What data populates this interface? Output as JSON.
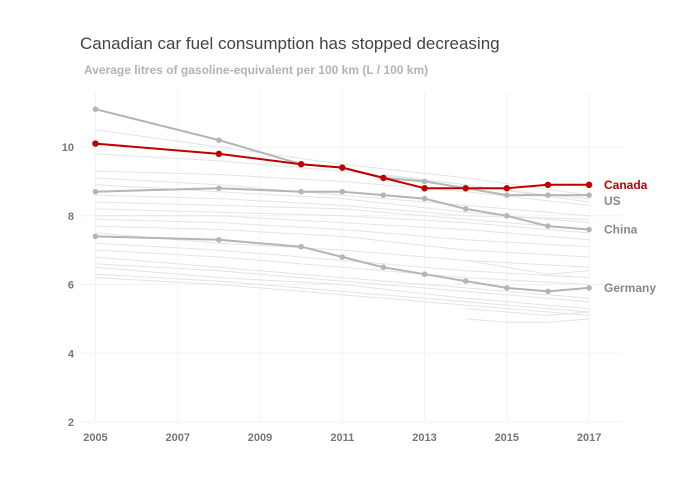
{
  "chart_data": {
    "type": "line",
    "title": "Canadian car fuel consumption has stopped decreasing",
    "subtitle": "Average litres of gasoline-equivalent per 100 km (L / 100 km)",
    "xlabel": "",
    "ylabel": "",
    "xlim": [
      2004.6,
      2017.8
    ],
    "ylim": [
      2,
      11.6
    ],
    "x_ticks": [
      2005,
      2007,
      2009,
      2011,
      2013,
      2015,
      2017
    ],
    "y_ticks": [
      2,
      4,
      6,
      8,
      10
    ],
    "grid": true,
    "highlight_color": "#c00000",
    "muted_color": "#b5b5b5",
    "background_color": "#e4e4e4",
    "highlighted_series": [
      {
        "name": "Canada",
        "color": "#c00000",
        "points": [
          [
            2005,
            10.1
          ],
          [
            2008,
            9.8
          ],
          [
            2010,
            9.5
          ],
          [
            2011,
            9.4
          ],
          [
            2012,
            9.1
          ],
          [
            2013,
            8.8
          ],
          [
            2014,
            8.8
          ],
          [
            2015,
            8.8
          ],
          [
            2016,
            8.9
          ],
          [
            2017,
            8.9
          ]
        ]
      },
      {
        "name": "US",
        "color": "#b5b5b5",
        "points": [
          [
            2005,
            11.1
          ],
          [
            2008,
            10.2
          ],
          [
            2010,
            9.5
          ],
          [
            2011,
            9.4
          ],
          [
            2012,
            9.1
          ],
          [
            2013,
            9.0
          ],
          [
            2014,
            8.8
          ],
          [
            2015,
            8.6
          ],
          [
            2016,
            8.6
          ],
          [
            2017,
            8.6
          ]
        ]
      },
      {
        "name": "China",
        "color": "#b5b5b5",
        "points": [
          [
            2005,
            8.7
          ],
          [
            2008,
            8.8
          ],
          [
            2010,
            8.7
          ],
          [
            2011,
            8.7
          ],
          [
            2012,
            8.6
          ],
          [
            2013,
            8.5
          ],
          [
            2014,
            8.2
          ],
          [
            2015,
            8.0
          ],
          [
            2016,
            7.7
          ],
          [
            2017,
            7.6
          ]
        ]
      },
      {
        "name": "Germany",
        "color": "#b5b5b5",
        "points": [
          [
            2005,
            7.4
          ],
          [
            2008,
            7.3
          ],
          [
            2010,
            7.1
          ],
          [
            2011,
            6.8
          ],
          [
            2012,
            6.5
          ],
          [
            2013,
            6.3
          ],
          [
            2014,
            6.1
          ],
          [
            2015,
            5.9
          ],
          [
            2016,
            5.8
          ],
          [
            2017,
            5.9
          ]
        ]
      }
    ],
    "background_series": [
      {
        "points": [
          [
            2005,
            10.5
          ],
          [
            2008,
            10.0
          ],
          [
            2011,
            9.5
          ],
          [
            2014,
            9.1
          ],
          [
            2017,
            8.6
          ]
        ]
      },
      {
        "points": [
          [
            2005,
            9.8
          ],
          [
            2008,
            9.6
          ],
          [
            2011,
            9.3
          ],
          [
            2014,
            8.9
          ],
          [
            2017,
            8.4
          ]
        ]
      },
      {
        "points": [
          [
            2005,
            9.3
          ],
          [
            2008,
            9.2
          ],
          [
            2011,
            9.0
          ],
          [
            2014,
            8.7
          ],
          [
            2017,
            8.3
          ]
        ]
      },
      {
        "points": [
          [
            2005,
            9.1
          ],
          [
            2008,
            8.9
          ],
          [
            2011,
            8.6
          ],
          [
            2014,
            8.3
          ],
          [
            2017,
            8.0
          ]
        ]
      },
      {
        "points": [
          [
            2005,
            8.9
          ],
          [
            2008,
            8.7
          ],
          [
            2011,
            8.5
          ],
          [
            2014,
            8.1
          ],
          [
            2017,
            7.8
          ]
        ]
      },
      {
        "points": [
          [
            2005,
            8.6
          ],
          [
            2008,
            8.5
          ],
          [
            2011,
            8.3
          ],
          [
            2014,
            8.0
          ],
          [
            2017,
            7.9
          ]
        ]
      },
      {
        "points": [
          [
            2005,
            8.4
          ],
          [
            2008,
            8.3
          ],
          [
            2011,
            8.2
          ],
          [
            2014,
            7.9
          ],
          [
            2017,
            7.6
          ]
        ]
      },
      {
        "points": [
          [
            2005,
            8.2
          ],
          [
            2008,
            8.1
          ],
          [
            2011,
            8.0
          ],
          [
            2014,
            7.8
          ],
          [
            2017,
            7.5
          ]
        ]
      },
      {
        "points": [
          [
            2005,
            8.0
          ],
          [
            2008,
            8.0
          ],
          [
            2011,
            7.8
          ],
          [
            2014,
            7.6
          ],
          [
            2017,
            7.3
          ]
        ]
      },
      {
        "points": [
          [
            2005,
            7.9
          ],
          [
            2008,
            7.8
          ],
          [
            2011,
            7.6
          ],
          [
            2014,
            7.3
          ],
          [
            2017,
            7.1
          ]
        ]
      },
      {
        "points": [
          [
            2005,
            7.7
          ],
          [
            2008,
            7.6
          ],
          [
            2011,
            7.4
          ],
          [
            2014,
            7.0
          ],
          [
            2017,
            6.8
          ]
        ]
      },
      {
        "points": [
          [
            2005,
            7.5
          ],
          [
            2008,
            7.2
          ],
          [
            2011,
            7.0
          ],
          [
            2014,
            6.7
          ],
          [
            2017,
            6.5
          ]
        ]
      },
      {
        "points": [
          [
            2005,
            7.2
          ],
          [
            2008,
            7.0
          ],
          [
            2011,
            6.7
          ],
          [
            2014,
            6.4
          ],
          [
            2017,
            6.2
          ]
        ]
      },
      {
        "points": [
          [
            2005,
            7.0
          ],
          [
            2008,
            6.8
          ],
          [
            2011,
            6.5
          ],
          [
            2014,
            6.2
          ],
          [
            2017,
            6.0
          ]
        ]
      },
      {
        "points": [
          [
            2005,
            6.8
          ],
          [
            2008,
            6.5
          ],
          [
            2011,
            6.2
          ],
          [
            2014,
            5.9
          ],
          [
            2017,
            5.6
          ]
        ]
      },
      {
        "points": [
          [
            2005,
            6.6
          ],
          [
            2008,
            6.4
          ],
          [
            2011,
            6.1
          ],
          [
            2014,
            5.8
          ],
          [
            2017,
            5.5
          ]
        ]
      },
      {
        "points": [
          [
            2005,
            6.5
          ],
          [
            2008,
            6.2
          ],
          [
            2011,
            6.0
          ],
          [
            2014,
            5.6
          ],
          [
            2017,
            5.3
          ]
        ]
      },
      {
        "points": [
          [
            2005,
            6.3
          ],
          [
            2008,
            6.1
          ],
          [
            2011,
            5.8
          ],
          [
            2014,
            5.5
          ],
          [
            2017,
            5.2
          ]
        ]
      },
      {
        "points": [
          [
            2005,
            6.2
          ],
          [
            2008,
            6.0
          ],
          [
            2011,
            5.7
          ],
          [
            2014,
            5.4
          ],
          [
            2017,
            5.1
          ]
        ]
      },
      {
        "points": [
          [
            2014,
            6.7
          ],
          [
            2015,
            6.5
          ],
          [
            2016,
            6.3
          ],
          [
            2017,
            6.4
          ]
        ]
      },
      {
        "points": [
          [
            2014,
            5.3
          ],
          [
            2015,
            5.2
          ],
          [
            2016,
            5.1
          ],
          [
            2017,
            5.2
          ]
        ]
      },
      {
        "points": [
          [
            2014,
            5.0
          ],
          [
            2015,
            4.9
          ],
          [
            2016,
            4.9
          ],
          [
            2017,
            5.0
          ]
        ]
      },
      {
        "points": [
          [
            2012,
            9.2
          ],
          [
            2014,
            8.9
          ],
          [
            2016,
            8.6
          ],
          [
            2017,
            8.5
          ]
        ]
      }
    ]
  }
}
